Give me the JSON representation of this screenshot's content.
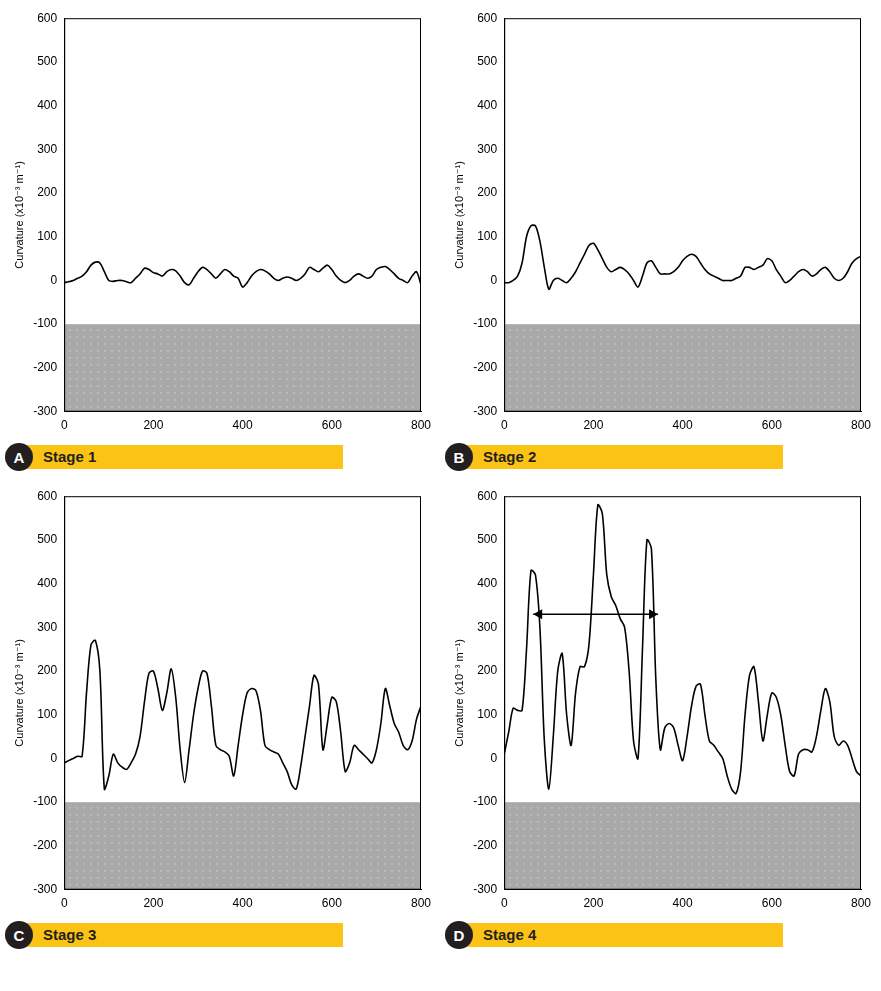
{
  "chart_data": [
    {
      "type": "line",
      "label": "A",
      "title": "Stage 1",
      "y_label": "Curvature (x10⁻³ m⁻¹)",
      "color": "#000000",
      "grid": false,
      "xlim": [
        0,
        800
      ],
      "xticks": [
        0,
        200,
        400,
        600,
        800
      ],
      "ylim": [
        -300,
        600
      ],
      "yticks": [
        -300,
        -200,
        -100,
        0,
        100,
        200,
        300,
        400,
        500,
        600
      ],
      "x": [
        0,
        10,
        20,
        30,
        40,
        50,
        60,
        70,
        80,
        90,
        100,
        110,
        120,
        130,
        140,
        150,
        160,
        170,
        180,
        190,
        200,
        210,
        220,
        230,
        240,
        250,
        260,
        270,
        280,
        290,
        300,
        310,
        320,
        330,
        340,
        350,
        360,
        370,
        380,
        390,
        400,
        410,
        420,
        430,
        440,
        450,
        460,
        470,
        480,
        490,
        500,
        510,
        520,
        530,
        540,
        550,
        560,
        570,
        580,
        590,
        600,
        610,
        620,
        630,
        640,
        650,
        660,
        670,
        680,
        690,
        700,
        710,
        720,
        730,
        740,
        750,
        760,
        770,
        780,
        790,
        800
      ],
      "values": [
        -5,
        -3,
        0,
        5,
        10,
        20,
        35,
        42,
        40,
        20,
        0,
        -2,
        0,
        0,
        -3,
        -5,
        5,
        15,
        28,
        25,
        18,
        15,
        10,
        20,
        25,
        22,
        10,
        -5,
        -10,
        5,
        20,
        30,
        25,
        15,
        5,
        15,
        25,
        20,
        10,
        5,
        -15,
        -5,
        10,
        20,
        25,
        22,
        15,
        5,
        0,
        5,
        8,
        5,
        0,
        5,
        15,
        30,
        25,
        20,
        28,
        35,
        25,
        10,
        0,
        -5,
        0,
        10,
        15,
        10,
        5,
        10,
        25,
        30,
        32,
        25,
        15,
        5,
        0,
        -5,
        10,
        20,
        -10
      ]
    },
    {
      "type": "line",
      "label": "B",
      "title": "Stage 2",
      "y_label": "Curvature (x10⁻³ m⁻¹)",
      "color": "#000000",
      "grid": false,
      "xlim": [
        0,
        800
      ],
      "xticks": [
        0,
        200,
        400,
        600,
        800
      ],
      "ylim": [
        -300,
        600
      ],
      "yticks": [
        -300,
        -200,
        -100,
        0,
        100,
        200,
        300,
        400,
        500,
        600
      ],
      "x": [
        0,
        10,
        20,
        30,
        40,
        50,
        60,
        70,
        80,
        90,
        100,
        110,
        120,
        130,
        140,
        150,
        160,
        170,
        180,
        190,
        200,
        210,
        220,
        230,
        240,
        250,
        260,
        270,
        280,
        290,
        300,
        310,
        320,
        330,
        340,
        350,
        360,
        370,
        380,
        390,
        400,
        410,
        420,
        430,
        440,
        450,
        460,
        470,
        480,
        490,
        500,
        510,
        520,
        530,
        540,
        550,
        560,
        570,
        580,
        590,
        600,
        610,
        620,
        630,
        640,
        650,
        660,
        670,
        680,
        690,
        700,
        710,
        720,
        730,
        740,
        750,
        760,
        770,
        780,
        790,
        800
      ],
      "values": [
        -5,
        -5,
        0,
        10,
        40,
        100,
        125,
        125,
        90,
        30,
        -20,
        0,
        5,
        0,
        -5,
        5,
        20,
        40,
        60,
        80,
        85,
        70,
        50,
        30,
        20,
        25,
        30,
        25,
        15,
        0,
        -15,
        10,
        40,
        45,
        30,
        15,
        15,
        15,
        20,
        30,
        45,
        55,
        60,
        55,
        40,
        25,
        15,
        10,
        5,
        0,
        0,
        0,
        5,
        10,
        30,
        30,
        25,
        30,
        35,
        50,
        45,
        25,
        10,
        -5,
        0,
        10,
        20,
        25,
        20,
        10,
        15,
        25,
        30,
        20,
        5,
        0,
        5,
        20,
        40,
        50,
        55
      ]
    },
    {
      "type": "line",
      "label": "C",
      "title": "Stage 3",
      "y_label": "Curvature (x10⁻³ m⁻¹)",
      "color": "#000000",
      "grid": false,
      "xlim": [
        0,
        800
      ],
      "xticks": [
        0,
        200,
        400,
        600,
        800
      ],
      "ylim": [
        -300,
        600
      ],
      "yticks": [
        -300,
        -200,
        -100,
        0,
        100,
        200,
        300,
        400,
        500,
        600
      ],
      "x": [
        0,
        10,
        20,
        30,
        40,
        50,
        60,
        70,
        80,
        90,
        100,
        110,
        120,
        130,
        140,
        150,
        160,
        170,
        180,
        190,
        200,
        210,
        220,
        230,
        240,
        250,
        260,
        270,
        280,
        290,
        300,
        310,
        320,
        330,
        340,
        350,
        360,
        370,
        380,
        390,
        400,
        410,
        420,
        430,
        440,
        450,
        460,
        470,
        480,
        490,
        500,
        510,
        520,
        530,
        540,
        550,
        560,
        570,
        580,
        590,
        600,
        610,
        620,
        630,
        640,
        650,
        660,
        670,
        680,
        690,
        700,
        710,
        720,
        730,
        740,
        750,
        760,
        770,
        780,
        790,
        800
      ],
      "values": [
        -10,
        -5,
        0,
        5,
        5,
        150,
        260,
        270,
        200,
        -70,
        -40,
        10,
        -10,
        -20,
        -25,
        -10,
        10,
        50,
        130,
        195,
        200,
        160,
        110,
        150,
        205,
        140,
        20,
        -55,
        20,
        100,
        160,
        200,
        195,
        120,
        30,
        20,
        15,
        5,
        -40,
        30,
        100,
        150,
        160,
        155,
        110,
        30,
        20,
        15,
        10,
        -10,
        -30,
        -60,
        -70,
        -20,
        50,
        120,
        190,
        170,
        20,
        80,
        140,
        130,
        60,
        -30,
        -10,
        30,
        20,
        10,
        0,
        -10,
        20,
        80,
        160,
        120,
        80,
        60,
        30,
        20,
        40,
        90,
        120
      ]
    },
    {
      "type": "line",
      "label": "D",
      "title": "Stage 4",
      "y_label": "Curvature (x10⁻³ m⁻¹)",
      "color": "#000000",
      "grid": false,
      "xlim": [
        0,
        800
      ],
      "xticks": [
        0,
        200,
        400,
        600,
        800
      ],
      "ylim": [
        -300,
        600
      ],
      "yticks": [
        -300,
        -200,
        -100,
        0,
        100,
        200,
        300,
        400,
        500,
        600
      ],
      "x": [
        0,
        10,
        20,
        30,
        40,
        50,
        60,
        70,
        80,
        90,
        100,
        110,
        120,
        130,
        140,
        150,
        160,
        170,
        180,
        190,
        200,
        210,
        220,
        230,
        240,
        250,
        260,
        270,
        280,
        290,
        300,
        310,
        320,
        330,
        340,
        350,
        360,
        370,
        380,
        390,
        400,
        410,
        420,
        430,
        440,
        450,
        460,
        470,
        480,
        490,
        500,
        510,
        520,
        530,
        540,
        550,
        560,
        570,
        580,
        590,
        600,
        610,
        620,
        630,
        640,
        650,
        660,
        670,
        680,
        690,
        700,
        710,
        720,
        730,
        740,
        750,
        760,
        770,
        780,
        790,
        800
      ],
      "values": [
        10,
        60,
        115,
        110,
        110,
        250,
        430,
        420,
        300,
        40,
        -70,
        50,
        200,
        240,
        100,
        30,
        150,
        210,
        210,
        260,
        420,
        580,
        560,
        420,
        370,
        350,
        320,
        300,
        200,
        40,
        0,
        250,
        500,
        480,
        180,
        20,
        70,
        80,
        70,
        30,
        -5,
        50,
        120,
        165,
        170,
        100,
        40,
        30,
        15,
        0,
        -40,
        -70,
        -80,
        -30,
        100,
        190,
        210,
        130,
        40,
        100,
        150,
        140,
        100,
        30,
        -30,
        -40,
        10,
        20,
        20,
        15,
        50,
        110,
        160,
        130,
        50,
        30,
        40,
        30,
        0,
        -30,
        -40
      ],
      "arrow": {
        "x": [
          65,
          345
        ],
        "y": 330
      }
    }
  ]
}
